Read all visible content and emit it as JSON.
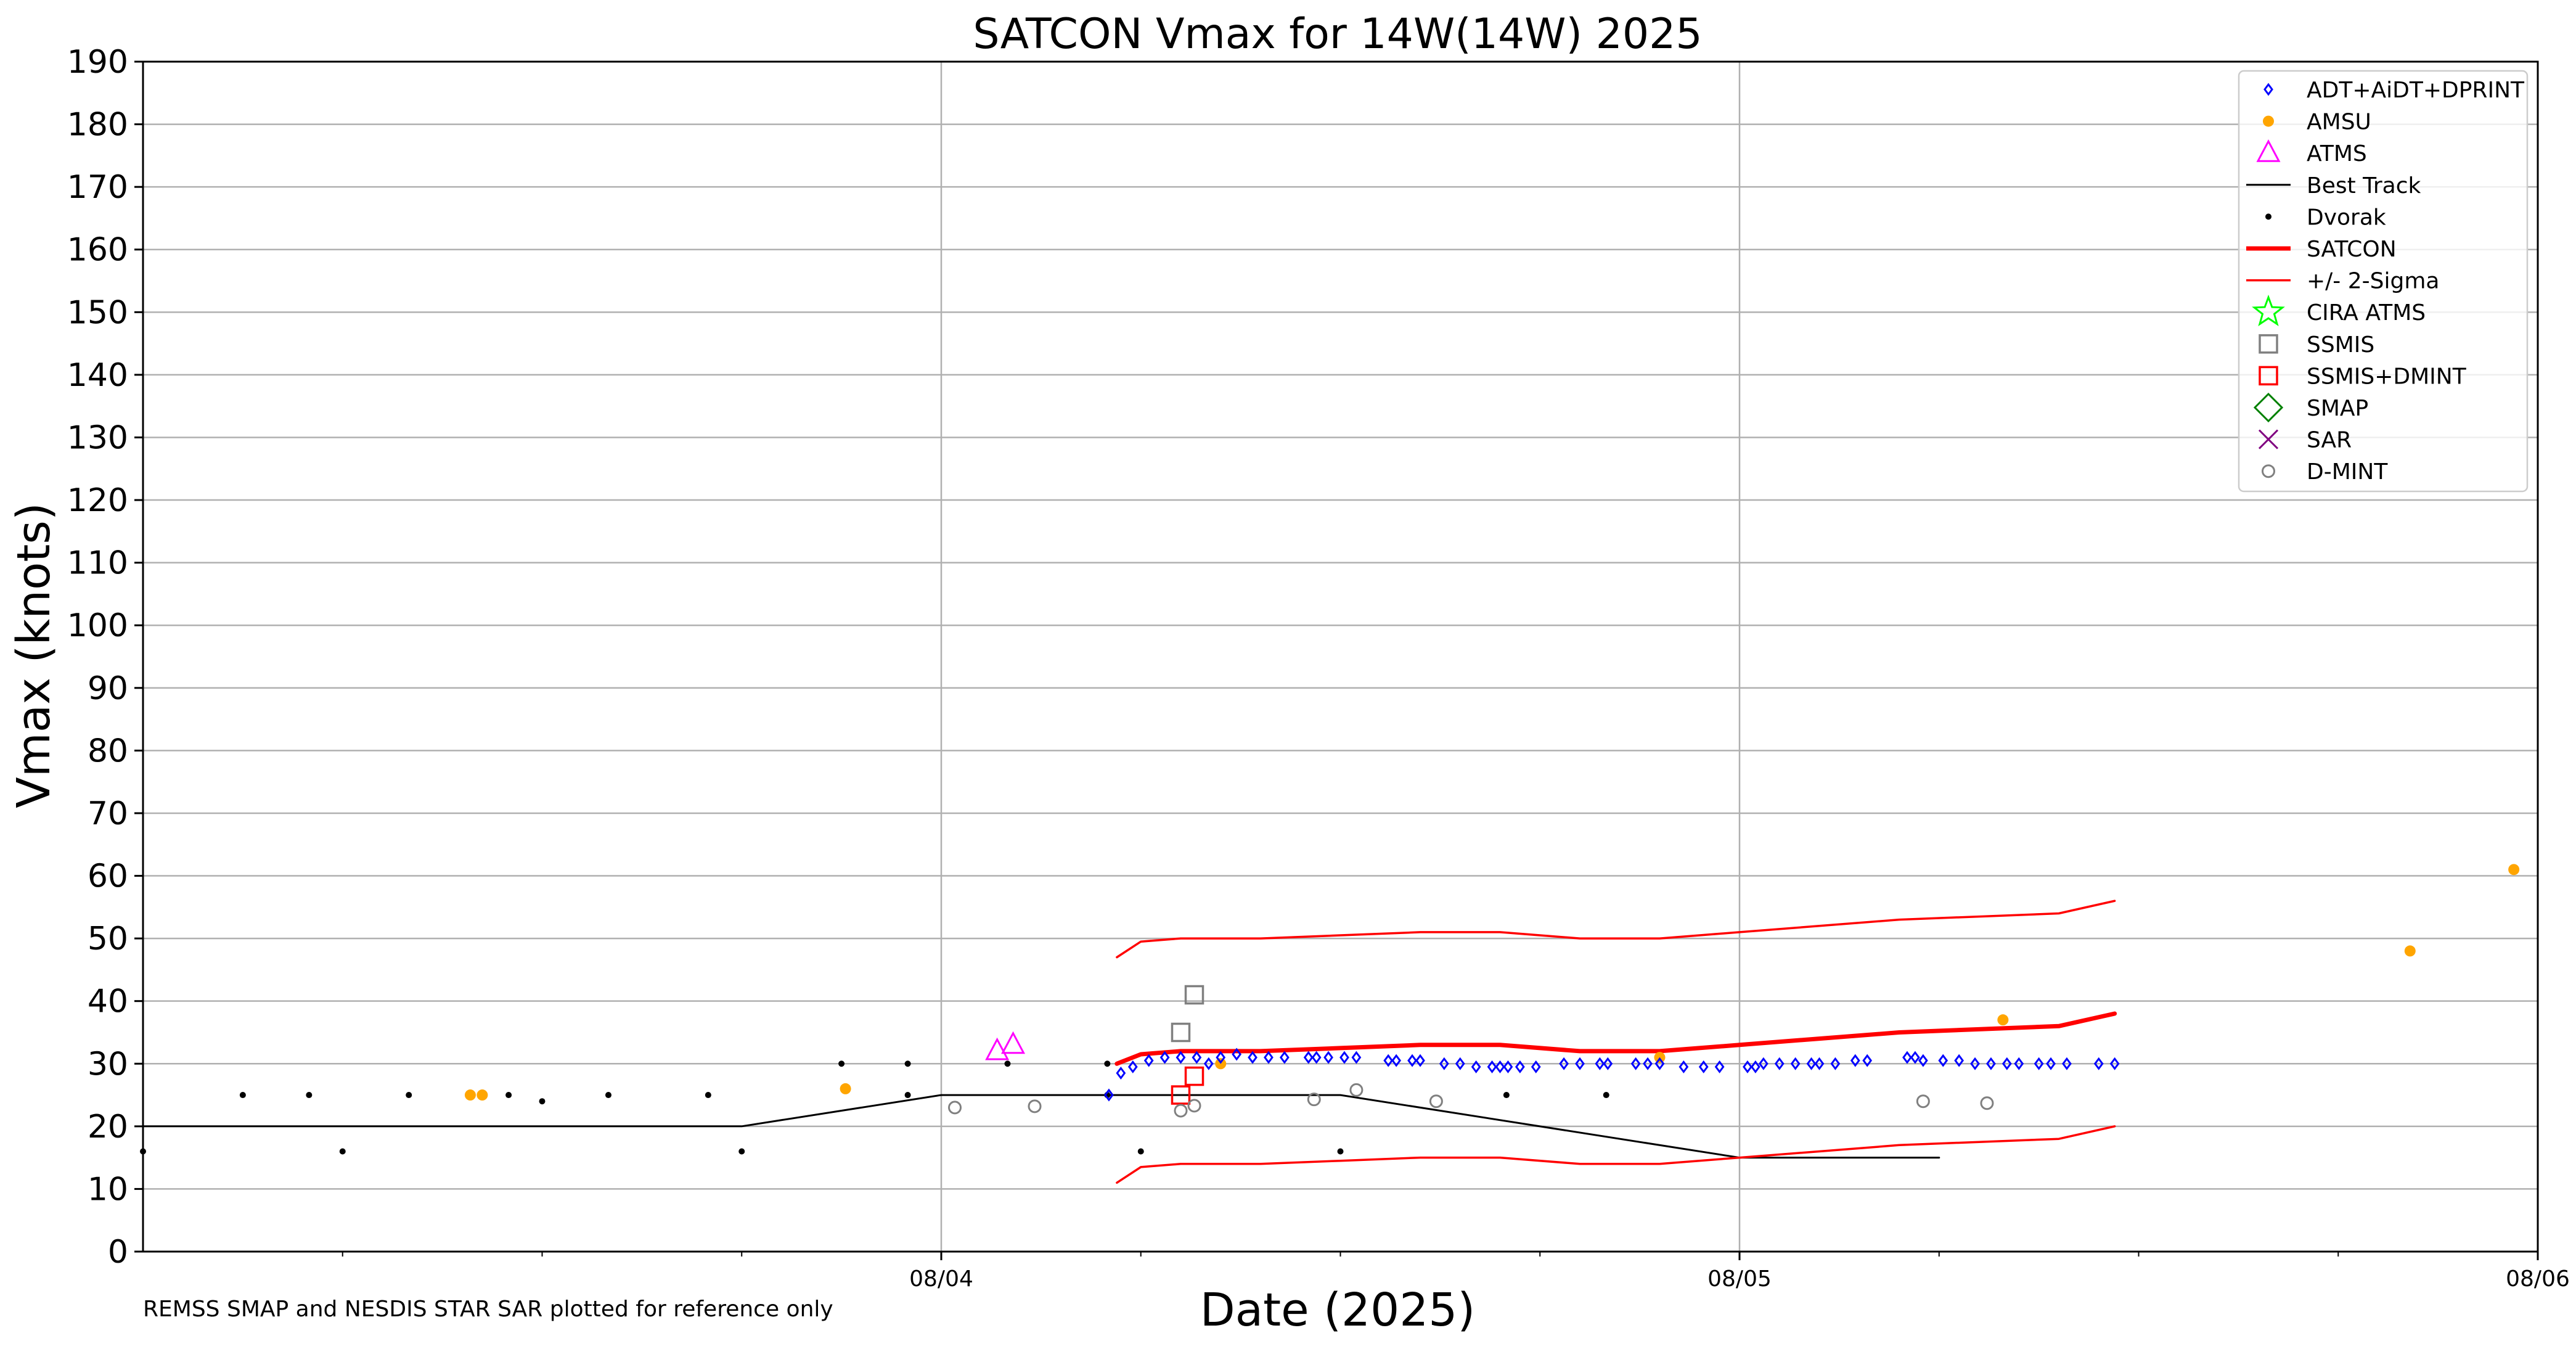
{
  "chart_data": {
    "type": "scatter",
    "title": "SATCON Vmax for 14W(14W) 2025",
    "xlabel": "Date (2025)",
    "ylabel": "Vmax (knots)",
    "note": "REMSS SMAP and NESDIS STAR SAR plotted for reference only",
    "x_range_days": [
      3.0,
      6.0
    ],
    "ylim": [
      0,
      190
    ],
    "y_ticks": [
      0,
      10,
      20,
      30,
      40,
      50,
      60,
      70,
      80,
      90,
      100,
      110,
      120,
      130,
      140,
      150,
      160,
      170,
      180,
      190
    ],
    "y_tick_labels": [
      "0",
      "10",
      "20",
      "30",
      "40",
      "50",
      "60",
      "70",
      "80",
      "90",
      "100",
      "110",
      "120",
      "130",
      "140",
      "150",
      "160",
      "170",
      "180",
      "190"
    ],
    "x_ticks_major": [
      4.0,
      5.0,
      6.0
    ],
    "x_tick_labels": [
      "08/04",
      "08/05",
      "08/06"
    ],
    "x_ticks_minor": [
      3.25,
      3.5,
      3.75,
      4.25,
      4.5,
      4.75,
      5.25,
      5.5,
      5.75
    ],
    "grid": true,
    "legend_position": "top-right",
    "legend": [
      {
        "label": "ADT+AiDT+DPRINT",
        "marker": "diamond",
        "color": "#0000ff"
      },
      {
        "label": "AMSU",
        "marker": "dot",
        "color": "#ffa500"
      },
      {
        "label": "ATMS",
        "marker": "triangle",
        "color": "#ff00ff"
      },
      {
        "label": "Best Track",
        "marker": "line",
        "color": "#000000"
      },
      {
        "label": "Dvorak",
        "marker": "smalldot",
        "color": "#000000"
      },
      {
        "label": "SATCON",
        "marker": "thickline",
        "color": "#ff0000"
      },
      {
        "label": "+/- 2-Sigma",
        "marker": "thinline",
        "color": "#ff0000"
      },
      {
        "label": "CIRA ATMS",
        "marker": "star",
        "color": "#00ff00"
      },
      {
        "label": "SSMIS",
        "marker": "square",
        "color": "#808080"
      },
      {
        "label": "SSMIS+DMINT",
        "marker": "square",
        "color": "#ff0000"
      },
      {
        "label": "SMAP",
        "marker": "bigdiamond",
        "color": "#008000"
      },
      {
        "label": "SAR",
        "marker": "x",
        "color": "#800080"
      },
      {
        "label": "D-MINT",
        "marker": "circle",
        "color": "#808080"
      }
    ],
    "series": [
      {
        "name": "Best Track",
        "style": "line",
        "color": "#000000",
        "x": [
          3.0,
          3.75,
          4.0,
          4.5,
          5.0,
          5.25
        ],
        "y": [
          20,
          20,
          25,
          25,
          15,
          15
        ]
      },
      {
        "name": "SATCON",
        "style": "thickline",
        "color": "#ff0000",
        "x": [
          4.22,
          4.25,
          4.3,
          4.4,
          4.5,
          4.6,
          4.7,
          4.8,
          4.9,
          5.0,
          5.1,
          5.2,
          5.3,
          5.4,
          5.47
        ],
        "y": [
          30,
          31.5,
          32,
          32,
          32.5,
          33,
          33,
          32,
          32,
          33,
          34,
          35,
          35.5,
          36,
          38
        ]
      },
      {
        "name": "+/- 2-Sigma",
        "style": "thinline",
        "color": "#ff0000",
        "x": [
          4.22,
          4.25,
          4.3,
          4.4,
          4.5,
          4.6,
          4.7,
          4.8,
          4.9,
          5.0,
          5.1,
          5.2,
          5.3,
          5.4,
          5.47
        ],
        "y": [
          47,
          49.5,
          50,
          50,
          50.5,
          51,
          51,
          50,
          50,
          51,
          52,
          53,
          53.5,
          54,
          56
        ]
      },
      {
        "name": "+/- 2-Sigma",
        "style": "thinline",
        "color": "#ff0000",
        "x": [
          4.22,
          4.25,
          4.3,
          4.4,
          4.5,
          4.6,
          4.7,
          4.8,
          4.9,
          5.0,
          5.1,
          5.2,
          5.3,
          5.4,
          5.47
        ],
        "y": [
          11,
          13.5,
          14,
          14,
          14.5,
          15,
          15,
          14,
          14,
          15,
          16,
          17,
          17.5,
          18,
          20
        ]
      },
      {
        "name": "Dvorak",
        "style": "smalldot",
        "color": "#000000",
        "x": [
          3.0,
          3.125,
          3.208,
          3.25,
          3.333,
          3.458,
          3.5,
          3.583,
          3.708,
          3.75,
          3.875,
          3.958,
          3.958,
          4.083,
          4.208,
          4.208,
          4.25,
          4.5,
          4.708,
          4.833
        ],
        "y": [
          16,
          25,
          25,
          16,
          25,
          25,
          24,
          25,
          25,
          16,
          30,
          30,
          25,
          30,
          30,
          25,
          16,
          16,
          25,
          25
        ]
      },
      {
        "name": "AMSU",
        "style": "dot",
        "color": "#ffa500",
        "x": [
          3.41,
          3.425,
          3.88,
          4.35,
          4.9,
          5.33,
          5.84,
          5.97
        ],
        "y": [
          25,
          25,
          26,
          30,
          31,
          37,
          48,
          61
        ]
      },
      {
        "name": "ATMS",
        "style": "triangle",
        "color": "#ff00ff",
        "x": [
          4.07,
          4.09
        ],
        "y": [
          32,
          33
        ]
      },
      {
        "name": "SSMIS",
        "style": "square",
        "color": "#808080",
        "x": [
          4.3,
          4.317
        ],
        "y": [
          35,
          41
        ]
      },
      {
        "name": "SSMIS+DMINT",
        "style": "square",
        "color": "#ff0000",
        "x": [
          4.3,
          4.317
        ],
        "y": [
          25,
          28
        ]
      },
      {
        "name": "D-MINT",
        "style": "circle",
        "color": "#808080",
        "x": [
          4.017,
          4.117,
          4.3,
          4.317,
          4.467,
          4.52,
          4.62,
          5.23,
          5.31
        ],
        "y": [
          23,
          23.2,
          22.5,
          23.3,
          24.3,
          25.8,
          24,
          24,
          23.7
        ]
      },
      {
        "name": "ADT+AiDT+DPRINT",
        "style": "diamond",
        "color": "#0000ff",
        "x": [
          4.21,
          4.225,
          4.24,
          4.26,
          4.28,
          4.3,
          4.32,
          4.335,
          4.35,
          4.37,
          4.39,
          4.41,
          4.43,
          4.46,
          4.47,
          4.485,
          4.505,
          4.52,
          4.56,
          4.57,
          4.59,
          4.6,
          4.63,
          4.65,
          4.67,
          4.69,
          4.7,
          4.71,
          4.725,
          4.745,
          4.78,
          4.8,
          4.825,
          4.835,
          4.87,
          4.885,
          4.9,
          4.93,
          4.955,
          4.975,
          5.01,
          5.02,
          5.03,
          5.05,
          5.07,
          5.09,
          5.1,
          5.12,
          5.145,
          5.16,
          5.21,
          5.22,
          5.23,
          5.255,
          5.275,
          5.295,
          5.315,
          5.335,
          5.35,
          5.375,
          5.39,
          5.41,
          5.45,
          5.47
        ],
        "y": [
          25,
          28.5,
          29.5,
          30.5,
          31,
          31,
          31,
          30,
          31,
          31.5,
          31,
          31,
          31,
          31,
          31,
          31,
          31,
          31,
          30.5,
          30.5,
          30.5,
          30.5,
          30,
          30,
          29.5,
          29.5,
          29.5,
          29.5,
          29.5,
          29.5,
          30,
          30,
          30,
          30,
          30,
          30,
          30,
          29.5,
          29.5,
          29.5,
          29.5,
          29.5,
          30,
          30,
          30,
          30,
          30,
          30,
          30.5,
          30.5,
          31,
          31,
          30.5,
          30.5,
          30.5,
          30,
          30,
          30,
          30,
          30,
          30,
          30,
          30,
          30
        ]
      }
    ]
  }
}
